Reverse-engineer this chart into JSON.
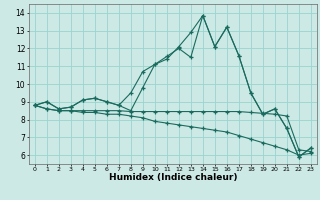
{
  "xlabel": "Humidex (Indice chaleur)",
  "xlim": [
    -0.5,
    23.5
  ],
  "ylim": [
    5.5,
    14.5
  ],
  "xticks": [
    0,
    1,
    2,
    3,
    4,
    5,
    6,
    7,
    8,
    9,
    10,
    11,
    12,
    13,
    14,
    15,
    16,
    17,
    18,
    19,
    20,
    21,
    22,
    23
  ],
  "yticks": [
    6,
    7,
    8,
    9,
    10,
    11,
    12,
    13,
    14
  ],
  "bg_color": "#cce9e5",
  "grid_color": "#99d4ce",
  "line_color": "#1a6b5e",
  "line1": [
    8.8,
    9.0,
    8.6,
    8.7,
    9.1,
    9.2,
    9.0,
    8.8,
    9.5,
    10.7,
    11.1,
    11.55,
    12.0,
    11.5,
    13.85,
    12.1,
    13.2,
    11.6,
    9.5,
    8.3,
    8.6,
    7.5,
    5.9,
    6.4
  ],
  "line2": [
    8.8,
    9.0,
    8.6,
    8.7,
    9.1,
    9.2,
    9.0,
    8.8,
    8.5,
    9.8,
    11.1,
    11.4,
    12.1,
    12.9,
    13.85,
    12.1,
    13.2,
    11.6,
    9.5,
    8.3,
    8.6,
    7.5,
    5.9,
    6.4
  ],
  "line3": [
    8.8,
    8.6,
    8.5,
    8.5,
    8.5,
    8.5,
    8.5,
    8.5,
    8.45,
    8.45,
    8.45,
    8.45,
    8.45,
    8.45,
    8.45,
    8.45,
    8.45,
    8.45,
    8.4,
    8.35,
    8.3,
    8.2,
    6.3,
    6.2
  ],
  "line4": [
    8.8,
    8.6,
    8.5,
    8.5,
    8.4,
    8.4,
    8.3,
    8.3,
    8.2,
    8.1,
    7.9,
    7.8,
    7.7,
    7.6,
    7.5,
    7.4,
    7.3,
    7.1,
    6.9,
    6.7,
    6.5,
    6.3,
    6.0,
    6.1
  ]
}
